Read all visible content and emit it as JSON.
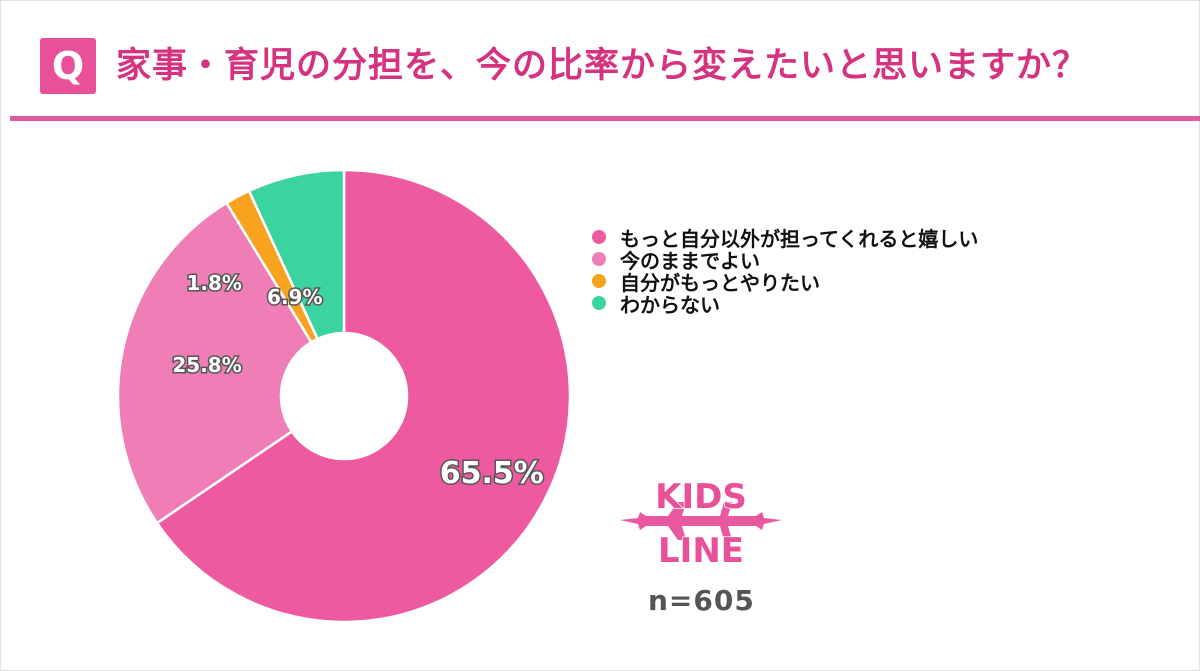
{
  "header": {
    "badge": "Q",
    "title": "家事・育児の分担を、今の比率から変えたいと思いますか？"
  },
  "chart_data": {
    "type": "pie",
    "donut": true,
    "title": "家事・育児の分担を、今の比率から変えたいと思いますか？",
    "slices": [
      {
        "label": "もっと自分以外が担ってくれると嬉しい",
        "value": 65.5,
        "display": "65.5%",
        "color": "#ee5a9f"
      },
      {
        "label": "今のままでよい",
        "value": 25.8,
        "display": "25.8%",
        "color": "#f07eb6"
      },
      {
        "label": "自分がもっとやりたい",
        "value": 1.8,
        "display": "1.8%",
        "color": "#f7a320"
      },
      {
        "label": "わからない",
        "value": 6.9,
        "display": "6.9%",
        "color": "#3bd39f"
      }
    ],
    "legend_position": "right",
    "sample_size": "n=605"
  },
  "logo": {
    "line1": "KIDS",
    "line2": "LINE",
    "color": "#e8509a"
  },
  "footer": {
    "n": "n=605"
  }
}
